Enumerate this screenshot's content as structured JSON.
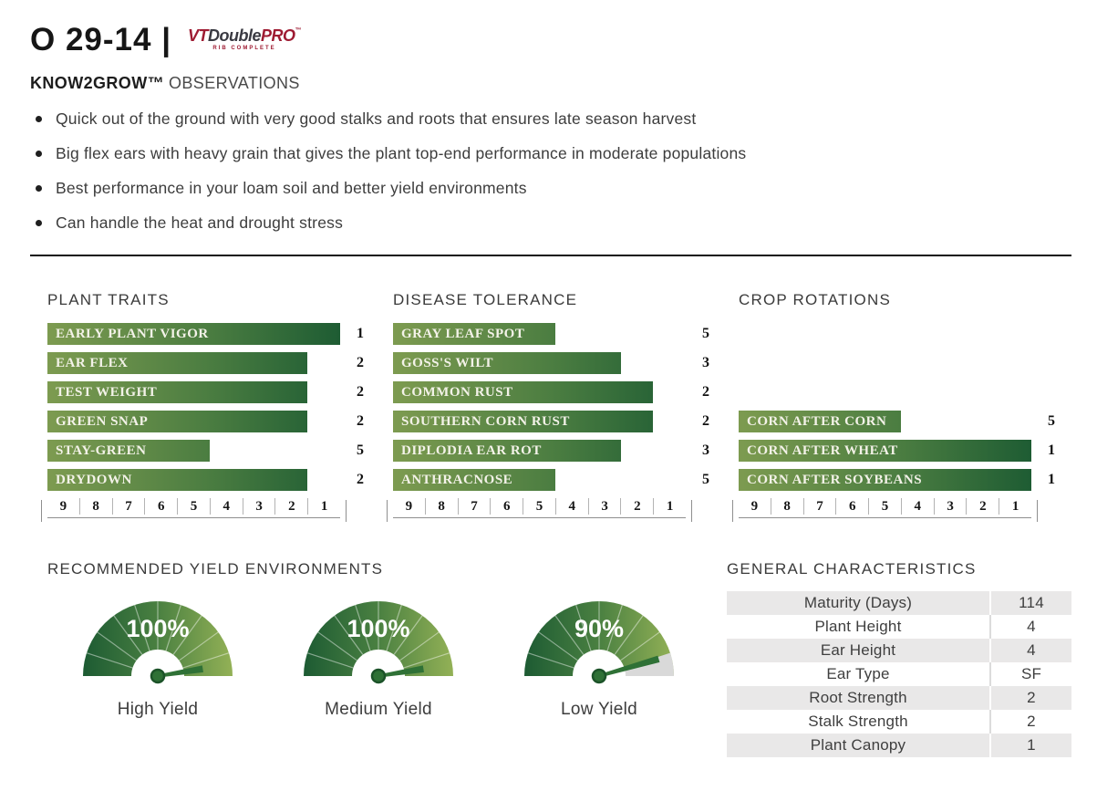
{
  "header": {
    "title": "O 29-14 |",
    "logo": {
      "vt": "VT",
      "double": "Double",
      "pro": "PRO",
      "tm": "™",
      "subtext": "RIB COMPLETE"
    },
    "know_bold": "KNOW2GROW™",
    "know_rest": "OBSERVATIONS",
    "bullets": [
      "Quick out of the ground with very good stalks and roots that ensures late season harvest",
      "Big flex ears with heavy grain that gives the plant top-end performance in moderate populations",
      "Best performance in your loam soil and better yield environments",
      "Can handle the heat and drought stress"
    ]
  },
  "colors": {
    "accent_red": "#9e1b32",
    "logo_dark": "#3a3a42",
    "bar_gradient_light": "#7d9b50",
    "bar_gradient_dark": "#1e5c33",
    "gauge_gradient_dark": "#1d5b33",
    "gauge_gradient_light": "#93b156",
    "gauge_remainder_gray": "#d9d9d9",
    "needle_green": "#2f7136",
    "table_shaded_gray": "#e9e8e8",
    "divider_black": "#111111"
  },
  "chart_data": [
    {
      "type": "bar",
      "title": "PLANT TRAITS",
      "categories": [
        "EARLY PLANT VIGOR",
        "EAR FLEX",
        "TEST WEIGHT",
        "GREEN SNAP",
        "STAY-GREEN",
        "DRYDOWN"
      ],
      "values": [
        1,
        2,
        2,
        2,
        5,
        2
      ],
      "scale_ticks": [
        9,
        8,
        7,
        6,
        5,
        4,
        3,
        2,
        1
      ],
      "axis_range": [
        9,
        1
      ],
      "note": "1 = best rating; bar length spans from 9 up to the rated value"
    },
    {
      "type": "bar",
      "title": "DISEASE TOLERANCE",
      "categories": [
        "GRAY LEAF SPOT",
        "GOSS'S WILT",
        "COMMON RUST",
        "SOUTHERN CORN RUST",
        "DIPLODIA EAR ROT",
        "ANTHRACNOSE"
      ],
      "values": [
        5,
        3,
        2,
        2,
        3,
        5
      ],
      "scale_ticks": [
        9,
        8,
        7,
        6,
        5,
        4,
        3,
        2,
        1
      ],
      "axis_range": [
        9,
        1
      ]
    },
    {
      "type": "bar",
      "title": "CROP ROTATIONS",
      "categories": [
        "CORN AFTER CORN",
        "CORN AFTER WHEAT",
        "CORN AFTER SOYBEANS"
      ],
      "values": [
        5,
        1,
        1
      ],
      "scale_ticks": [
        9,
        8,
        7,
        6,
        5,
        4,
        3,
        2,
        1
      ],
      "axis_range": [
        9,
        1
      ],
      "bottom_aligned": true
    },
    {
      "type": "gauge",
      "title": "RECOMMENDED YIELD ENVIRONMENTS",
      "gauges": [
        {
          "label": "High Yield",
          "value_pct": 100,
          "display": "100%"
        },
        {
          "label": "Medium Yield",
          "value_pct": 100,
          "display": "100%"
        },
        {
          "label": "Low Yield",
          "value_pct": 90,
          "display": "90%"
        }
      ]
    },
    {
      "type": "table",
      "title": "GENERAL CHARACTERISTICS",
      "rows": [
        {
          "label": "Maturity (Days)",
          "value": "114"
        },
        {
          "label": "Plant Height",
          "value": "4"
        },
        {
          "label": "Ear Height",
          "value": "4"
        },
        {
          "label": "Ear Type",
          "value": "SF"
        },
        {
          "label": "Root Strength",
          "value": "2"
        },
        {
          "label": "Stalk Strength",
          "value": "2"
        },
        {
          "label": "Plant Canopy",
          "value": "1"
        }
      ]
    }
  ]
}
